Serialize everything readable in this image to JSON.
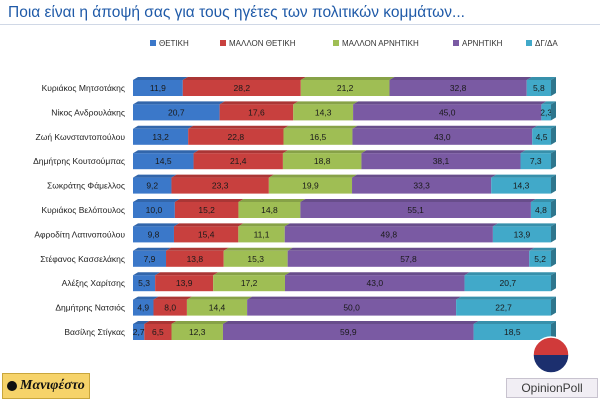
{
  "title": "Ποια είναι η άποψή σας για τους ηγέτες των πολιτικών κομμάτων...",
  "footer": {
    "left_logo": "Μανιφέστο",
    "right_logo": "OpinionPoll"
  },
  "colors": {
    "series": [
      "#3b78c9",
      "#c8403e",
      "#9fbe54",
      "#7a5aa3",
      "#41a9c9"
    ],
    "title": "#1f5aa8"
  },
  "chart_data": {
    "type": "bar",
    "orientation": "horizontal",
    "stacked": true,
    "percent": true,
    "title": "Ποια είναι η άποψή σας για τους ηγέτες των πολιτικών κομμάτων...",
    "legend_position": "top",
    "xlabel": "",
    "ylabel": "",
    "xlim": [
      0,
      100
    ],
    "categories": [
      "Κυριάκος Μητσοτάκης",
      "Νίκος Ανδρουλάκης",
      "Ζωή Κωνσταντοπούλου",
      "Δημήτρης Κουτσούμπας",
      "Σωκράτης Φάμελλος",
      "Κυριάκος Βελόπουλος",
      "Αφροδίτη Λατινοπούλου",
      "Στέφανος Κασσελάκης",
      "Αλέξης Χαρίτσης",
      "Δημήτρης Νατσιός",
      "Βασίλης Στίγκας"
    ],
    "series": [
      {
        "name": "ΘΕΤΙΚΗ",
        "values": [
          11.9,
          20.7,
          13.2,
          14.5,
          9.2,
          10.0,
          9.8,
          7.9,
          5.3,
          4.9,
          2.7
        ]
      },
      {
        "name": "ΜΑΛΛΟΝ ΘΕΤΙΚΗ",
        "values": [
          28.2,
          17.6,
          22.8,
          21.4,
          23.3,
          15.2,
          15.4,
          13.8,
          13.9,
          8.0,
          6.5
        ]
      },
      {
        "name": "ΜΑΛΛΟΝ ΑΡΝΗΤΙΚΗ",
        "values": [
          21.2,
          14.3,
          16.5,
          18.8,
          19.9,
          14.8,
          11.1,
          15.3,
          17.2,
          14.4,
          12.3
        ]
      },
      {
        "name": "ΑΡΝΗΤΙΚΗ",
        "values": [
          32.8,
          45.0,
          43.0,
          38.1,
          33.3,
          55.1,
          49.8,
          57.8,
          43.0,
          50.0,
          59.9
        ]
      },
      {
        "name": "ΔΓ/ΔΑ",
        "values": [
          5.8,
          2.3,
          4.5,
          7.3,
          14.3,
          4.8,
          13.9,
          5.2,
          20.7,
          22.7,
          18.5
        ]
      }
    ]
  }
}
